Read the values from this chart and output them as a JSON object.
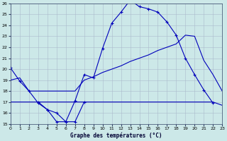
{
  "title": "Graphe des températures (°C)",
  "bg_color": "#cce8e8",
  "line_color": "#0000bb",
  "grid_color": "#aabbcc",
  "xlim": [
    0,
    23
  ],
  "ylim": [
    15,
    26
  ],
  "xtick_labels": [
    "0",
    "1",
    "2",
    "3",
    "4",
    "5",
    "6",
    "7",
    "8",
    "9",
    "10",
    "11",
    "12",
    "13",
    "14",
    "15",
    "16",
    "17",
    "18",
    "19",
    "20",
    "21",
    "22",
    "23"
  ],
  "xticks": [
    0,
    1,
    2,
    3,
    4,
    5,
    6,
    7,
    8,
    9,
    10,
    11,
    12,
    13,
    14,
    15,
    16,
    17,
    18,
    19,
    20,
    21,
    22,
    23
  ],
  "yticks": [
    15,
    16,
    17,
    18,
    19,
    20,
    21,
    22,
    23,
    24,
    25,
    26
  ],
  "curve1_x": [
    0,
    1,
    2,
    3,
    4,
    5,
    6,
    7,
    8,
    9,
    10,
    11,
    12,
    13,
    14,
    15,
    16,
    17,
    18,
    19,
    20,
    21,
    22
  ],
  "curve1_y": [
    20.1,
    18.9,
    18.0,
    16.9,
    16.3,
    15.2,
    15.2,
    17.1,
    19.5,
    19.2,
    21.9,
    24.2,
    25.2,
    26.3,
    25.7,
    25.5,
    25.2,
    24.3,
    23.1,
    21.0,
    19.5,
    18.1,
    16.9
  ],
  "curve2_x": [
    3,
    4,
    5,
    6,
    7,
    8
  ],
  "curve2_y": [
    17.0,
    16.3,
    16.0,
    15.2,
    15.2,
    17.0
  ],
  "curve3_x": [
    0,
    1,
    2,
    3,
    4,
    5,
    6,
    7,
    8,
    9,
    10,
    11,
    12,
    13,
    14,
    15,
    16,
    17,
    18,
    19,
    20,
    21,
    22,
    23
  ],
  "curve3_y": [
    19.0,
    19.2,
    18.0,
    18.0,
    18.0,
    18.0,
    18.0,
    18.0,
    19.0,
    19.3,
    19.7,
    20.0,
    20.3,
    20.7,
    21.0,
    21.3,
    21.7,
    22.0,
    22.3,
    23.1,
    23.0,
    20.8,
    19.5,
    18.0
  ],
  "curve4_x": [
    0,
    8,
    9,
    10,
    11,
    12,
    13,
    14,
    15,
    16,
    17,
    18,
    19,
    20,
    21,
    22,
    23
  ],
  "curve4_y": [
    17.0,
    17.0,
    17.0,
    17.0,
    17.0,
    17.0,
    17.0,
    17.0,
    17.0,
    17.0,
    17.0,
    17.0,
    17.0,
    17.0,
    17.0,
    17.0,
    16.7
  ]
}
